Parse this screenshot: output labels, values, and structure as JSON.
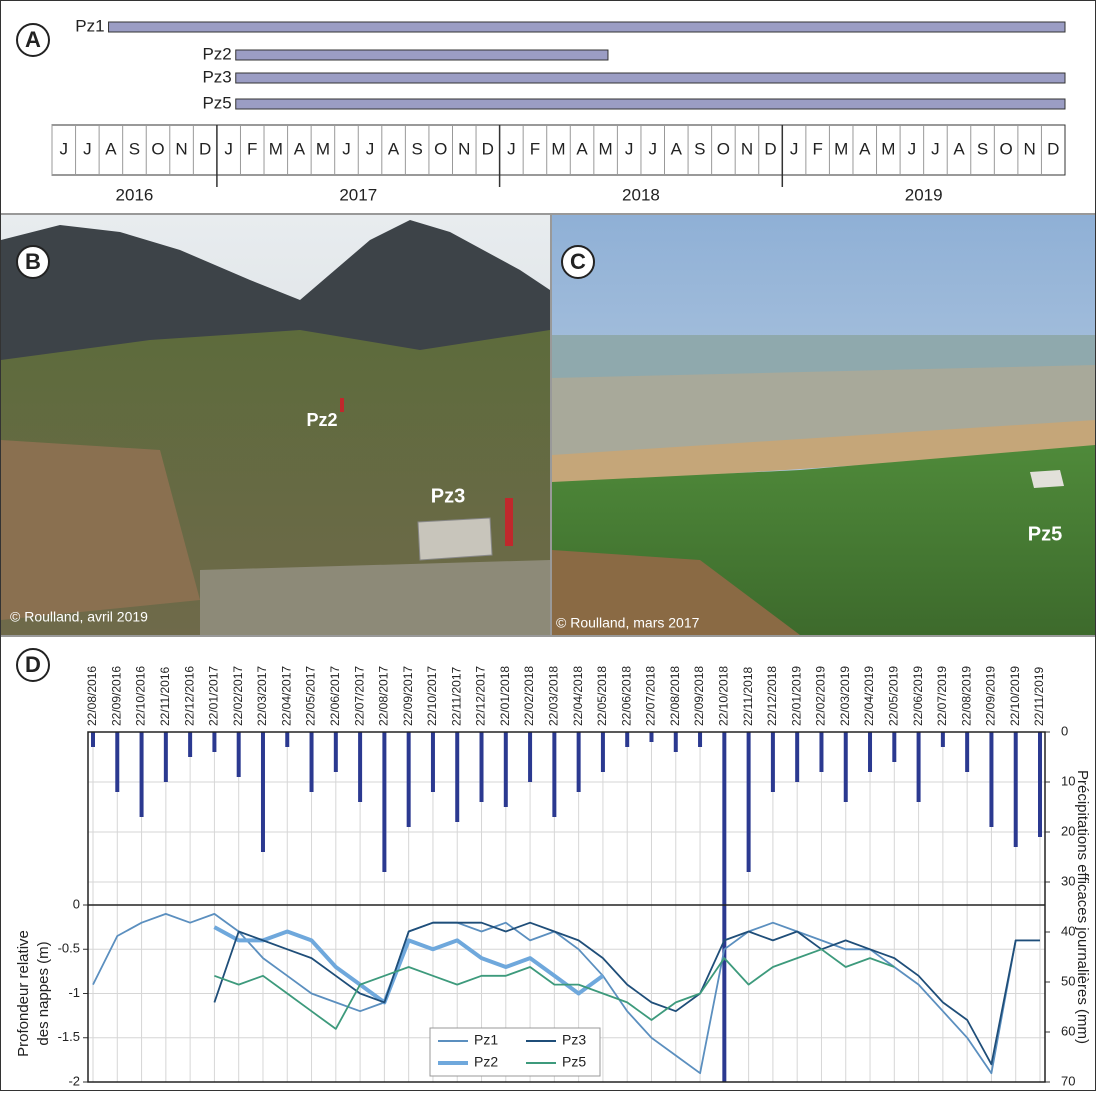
{
  "panels": [
    "A",
    "B",
    "C",
    "D"
  ],
  "photos": [
    {
      "markers": [
        "Pz2",
        "Pz3"
      ],
      "credit": "© Roulland, avril 2019"
    },
    {
      "markers": [
        "Pz5"
      ],
      "credit": "© Roulland, mars 2017"
    }
  ],
  "chart_data": [
    {
      "type": "gantt",
      "categories": [
        "J",
        "J",
        "A",
        "S",
        "O",
        "N",
        "D",
        "J",
        "F",
        "M",
        "A",
        "M",
        "J",
        "J",
        "A",
        "S",
        "O",
        "N",
        "D",
        "J",
        "F",
        "M",
        "A",
        "M",
        "J",
        "J",
        "A",
        "S",
        "O",
        "N",
        "D",
        "J",
        "F",
        "M",
        "A",
        "M",
        "J",
        "J",
        "A",
        "S",
        "O",
        "N",
        "D"
      ],
      "years": [
        2016,
        2017,
        2018,
        2019
      ],
      "xlim": [
        0,
        43
      ],
      "color": "#9b9dc4",
      "bars": [
        {
          "name": "Pz1",
          "start": 2.4,
          "end": 43
        },
        {
          "name": "Pz2",
          "start": 7.8,
          "end": 23.6
        },
        {
          "name": "Pz3",
          "start": 7.8,
          "end": 43
        },
        {
          "name": "Pz5",
          "start": 7.8,
          "end": 43
        }
      ]
    },
    {
      "type": "line",
      "x": [
        "22/08/2016",
        "22/09/2016",
        "22/10/2016",
        "22/11/2016",
        "22/12/2016",
        "22/01/2017",
        "22/02/2017",
        "22/03/2017",
        "22/04/2017",
        "22/05/2017",
        "22/06/2017",
        "22/07/2017",
        "22/08/2017",
        "22/09/2017",
        "22/10/2017",
        "22/11/2017",
        "22/12/2017",
        "22/01/2018",
        "22/02/2018",
        "22/03/2018",
        "22/04/2018",
        "22/05/2018",
        "22/06/2018",
        "22/07/2018",
        "22/08/2018",
        "22/09/2018",
        "22/10/2018",
        "22/11/2018",
        "22/12/2018",
        "22/01/2019",
        "22/02/2019",
        "22/03/2019",
        "22/04/2019",
        "22/05/2019",
        "22/06/2019",
        "22/07/2019",
        "22/08/2019",
        "22/09/2019",
        "22/10/2019",
        "22/11/2019"
      ],
      "ylabel": [
        "Profondeur relative",
        "des nappes (m)"
      ],
      "y2label": "Précipitations efficaces journalières (mm)",
      "ylim": [
        -2,
        0
      ],
      "yticks": [
        0,
        -0.5,
        -1,
        -1.5,
        -2
      ],
      "y2lim": [
        0,
        70
      ],
      "y2ticks": [
        0,
        10,
        20,
        30,
        40,
        50,
        60,
        70
      ],
      "grid": true,
      "precipitation": {
        "type": "bar",
        "axis": "y2",
        "color": "#2b3990",
        "values": [
          3,
          12,
          17,
          10,
          5,
          4,
          9,
          24,
          3,
          12,
          8,
          14,
          28,
          19,
          12,
          18,
          14,
          15,
          10,
          17,
          12,
          8,
          3,
          2,
          4,
          3,
          70,
          28,
          12,
          10,
          8,
          14,
          8,
          6,
          14,
          3,
          8,
          19,
          23,
          21
        ]
      },
      "series": [
        {
          "name": "Pz1",
          "color": "#5b8fbf",
          "values": [
            -0.9,
            -0.35,
            -0.2,
            -0.1,
            -0.2,
            -0.1,
            -0.3,
            -0.6,
            -0.8,
            -1.0,
            -1.1,
            -1.2,
            -1.1,
            -0.3,
            -0.2,
            -0.2,
            -0.3,
            -0.2,
            -0.4,
            -0.3,
            -0.5,
            -0.8,
            -1.2,
            -1.5,
            -1.7,
            -1.9,
            -0.5,
            -0.3,
            -0.2,
            -0.3,
            -0.4,
            -0.5,
            -0.5,
            -0.7,
            -0.9,
            -1.2,
            -1.5,
            -1.9,
            -0.4,
            -0.4
          ]
        },
        {
          "name": "Pz2",
          "color": "#6fa8dc",
          "values": [
            null,
            null,
            null,
            null,
            null,
            -0.25,
            -0.4,
            -0.4,
            -0.3,
            -0.4,
            -0.7,
            -0.9,
            -1.1,
            -0.4,
            -0.5,
            -0.4,
            -0.6,
            -0.7,
            -0.6,
            -0.8,
            -1.0,
            -0.8,
            null,
            null,
            null,
            null,
            null,
            null,
            null,
            null,
            null,
            null,
            null,
            null,
            null,
            null,
            null,
            null,
            null,
            null
          ]
        },
        {
          "name": "Pz3",
          "color": "#1f4e79",
          "values": [
            null,
            null,
            null,
            null,
            null,
            -1.1,
            -0.3,
            -0.4,
            -0.5,
            -0.6,
            -0.8,
            -1.0,
            -1.1,
            -0.3,
            -0.2,
            -0.2,
            -0.2,
            -0.3,
            -0.2,
            -0.3,
            -0.4,
            -0.6,
            -0.9,
            -1.1,
            -1.2,
            -1.0,
            -0.4,
            -0.3,
            -0.4,
            -0.3,
            -0.5,
            -0.4,
            -0.5,
            -0.6,
            -0.8,
            -1.1,
            -1.3,
            -1.8,
            -0.4,
            -0.4
          ]
        },
        {
          "name": "Pz5",
          "color": "#3d9a7c",
          "values": [
            null,
            null,
            null,
            null,
            null,
            -0.8,
            -0.9,
            -0.8,
            -1.0,
            -1.2,
            -1.4,
            -0.9,
            -0.8,
            -0.7,
            -0.8,
            -0.9,
            -0.8,
            -0.8,
            -0.7,
            -0.9,
            -0.9,
            -1.0,
            -1.1,
            -1.3,
            -1.1,
            -1.0,
            -0.6,
            -0.9,
            -0.7,
            -0.6,
            -0.5,
            -0.7,
            -0.6,
            -0.7,
            null,
            null,
            null,
            null,
            null,
            null
          ]
        }
      ]
    }
  ]
}
